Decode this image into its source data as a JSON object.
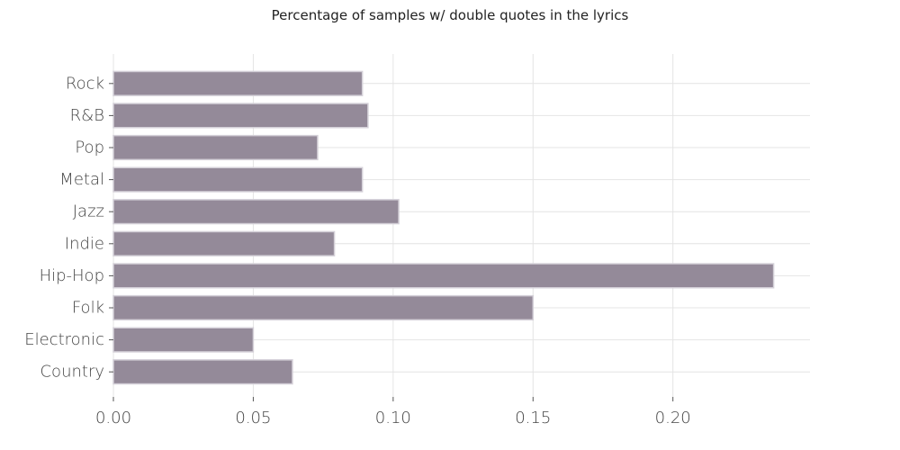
{
  "chart_data": {
    "type": "bar",
    "orientation": "horizontal",
    "title": "Percentage of samples w/ double quotes in the lyrics",
    "xlabel": "",
    "ylabel": "",
    "categories": [
      "Rock",
      "R&B",
      "Pop",
      "Metal",
      "Jazz",
      "Indie",
      "Hip-Hop",
      "Folk",
      "Electronic",
      "Country"
    ],
    "values": [
      0.089,
      0.091,
      0.073,
      0.089,
      0.102,
      0.079,
      0.236,
      0.15,
      0.05,
      0.064
    ],
    "xlim": [
      0,
      0.249
    ],
    "xticks": [
      0.0,
      0.05,
      0.1,
      0.15,
      0.2
    ],
    "xtick_labels": [
      "0.00",
      "0.05",
      "0.10",
      "0.15",
      "0.20"
    ],
    "grid": true,
    "legend": "none",
    "bar_color": "#948a99",
    "bar_edge_color": "#d4d0d8"
  }
}
